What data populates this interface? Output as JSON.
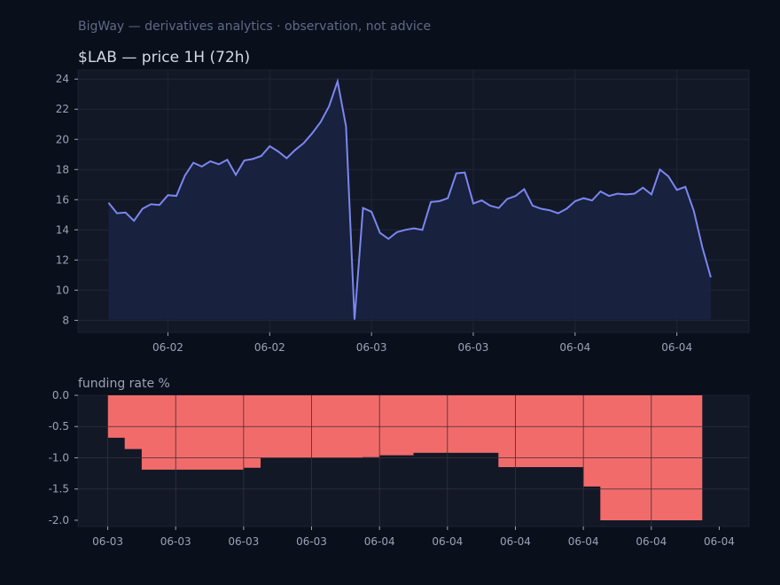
{
  "header": {
    "brand_line": "BigWay — derivatives analytics · observation, not advice"
  },
  "colors": {
    "background": "#0a0f1c",
    "panel": "#121826",
    "price_line": "#7b86f0",
    "price_fill": "#1a2240",
    "funding_bar": "#f26b6b"
  },
  "chart_data": [
    {
      "type": "line",
      "title": "$LAB — price 1H (72h)",
      "xlabel": "",
      "ylabel": "",
      "ylim": [
        7.2,
        24.6
      ],
      "yticks": [
        8,
        10,
        12,
        14,
        16,
        18,
        20,
        22,
        24
      ],
      "xlim": [
        -3.6,
        75.5
      ],
      "xticks": [
        {
          "x": 7,
          "label": "06-02"
        },
        {
          "x": 19,
          "label": "06-02"
        },
        {
          "x": 31,
          "label": "06-03"
        },
        {
          "x": 43,
          "label": "06-03"
        },
        {
          "x": 55,
          "label": "06-04"
        },
        {
          "x": 67,
          "label": "06-04"
        }
      ],
      "x": [
        0,
        1,
        2,
        3,
        4,
        5,
        6,
        7,
        8,
        9,
        10,
        11,
        12,
        13,
        14,
        15,
        16,
        17,
        18,
        19,
        20,
        21,
        22,
        23,
        24,
        25,
        26,
        27,
        28,
        29,
        30,
        31,
        32,
        33,
        34,
        35,
        36,
        37,
        38,
        39,
        40,
        41,
        42,
        43,
        44,
        45,
        46,
        47,
        48,
        49,
        50,
        51,
        52,
        53,
        54,
        55,
        56,
        57,
        58,
        59,
        60,
        61,
        62,
        63,
        64,
        65,
        66,
        67,
        68,
        69,
        70,
        71
      ],
      "series": [
        {
          "values": [
            15.8,
            15.1,
            15.15,
            14.6,
            15.4,
            15.7,
            15.65,
            16.3,
            16.25,
            17.6,
            18.45,
            18.2,
            18.55,
            18.35,
            18.65,
            17.65,
            18.6,
            18.7,
            18.9,
            19.55,
            19.2,
            18.75,
            19.3,
            19.75,
            20.4,
            21.15,
            22.2,
            23.85,
            20.85,
            8.05,
            15.45,
            15.2,
            13.8,
            13.4,
            13.85,
            14.0,
            14.1,
            14.0,
            15.85,
            15.9,
            16.1,
            17.75,
            17.8,
            15.75,
            15.95,
            15.6,
            15.45,
            16.05,
            16.25,
            16.7,
            15.6,
            15.4,
            15.3,
            15.1,
            15.4,
            15.9,
            16.1,
            15.95,
            16.55,
            16.25,
            16.4,
            16.35,
            16.4,
            16.8,
            16.35,
            18.0,
            17.55,
            16.65,
            16.85,
            15.25,
            12.85,
            10.85
          ]
        }
      ]
    },
    {
      "type": "bar",
      "title": "funding rate %",
      "xlabel": "",
      "ylabel": "",
      "ylim": [
        -2.1,
        0.0
      ],
      "yticks": [
        0.0,
        -0.5,
        -1.0,
        -1.5,
        -2.0
      ],
      "yticklabels": [
        "0.0",
        "-0.5",
        "-1.0",
        "-1.5",
        "-2.0"
      ],
      "xlim": [
        -3.5,
        75.5
      ],
      "xticks": [
        {
          "x": 0,
          "label": "06-03"
        },
        {
          "x": 8,
          "label": "06-03"
        },
        {
          "x": 16,
          "label": "06-03"
        },
        {
          "x": 24,
          "label": "06-03"
        },
        {
          "x": 32,
          "label": "06-04"
        },
        {
          "x": 40,
          "label": "06-04"
        },
        {
          "x": 48,
          "label": "06-04"
        },
        {
          "x": 56,
          "label": "06-04"
        },
        {
          "x": 64,
          "label": "06-04"
        },
        {
          "x": 72,
          "label": "06-04"
        }
      ],
      "steps": [
        {
          "start": 0,
          "end": 2,
          "value": -0.68
        },
        {
          "start": 2,
          "end": 4,
          "value": -0.86
        },
        {
          "start": 4,
          "end": 16,
          "value": -1.19
        },
        {
          "start": 16,
          "end": 18,
          "value": -1.16
        },
        {
          "start": 18,
          "end": 30,
          "value": -1.0
        },
        {
          "start": 30,
          "end": 32,
          "value": -0.99
        },
        {
          "start": 32,
          "end": 36,
          "value": -0.96
        },
        {
          "start": 36,
          "end": 46,
          "value": -0.92
        },
        {
          "start": 46,
          "end": 56,
          "value": -1.15
        },
        {
          "start": 56,
          "end": 58,
          "value": -1.46
        },
        {
          "start": 58,
          "end": 70,
          "value": -2.0
        }
      ],
      "vlines": [
        0,
        8,
        16,
        24,
        32,
        40,
        48,
        56,
        64
      ],
      "hlines": [
        -0.5,
        -1.0,
        -1.5
      ]
    }
  ]
}
